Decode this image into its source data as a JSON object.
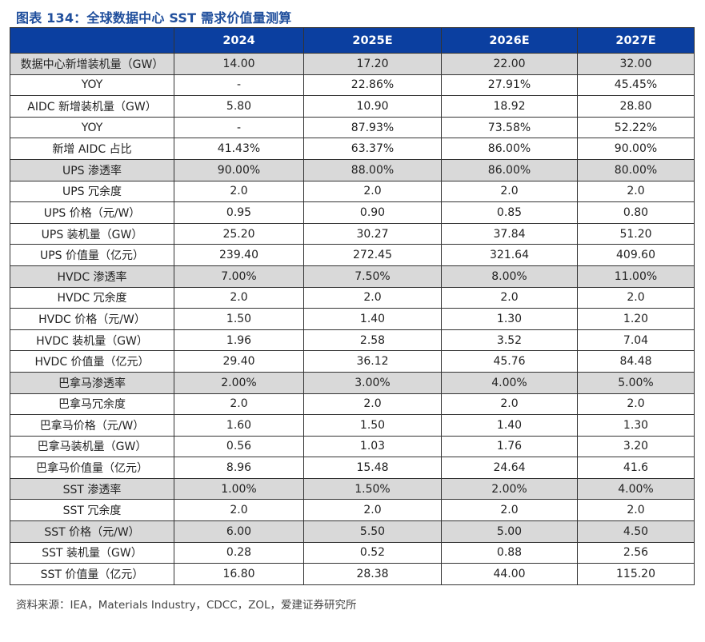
{
  "title": "图表 134：全球数据中心 SST 需求价值量测算",
  "header": [
    "",
    "2024",
    "2025E",
    "2026E",
    "2027E"
  ],
  "rows": [
    {
      "label": "数据中心新增装机量（GW）",
      "values": [
        "14.00",
        "17.20",
        "22.00",
        "32.00"
      ],
      "shaded": true
    },
    {
      "label": "YOY",
      "values": [
        "-",
        "22.86%",
        "27.91%",
        "45.45%"
      ],
      "shaded": false
    },
    {
      "label": "AIDC 新增装机量（GW）",
      "values": [
        "5.80",
        "10.90",
        "18.92",
        "28.80"
      ],
      "shaded": false
    },
    {
      "label": "YOY",
      "values": [
        "-",
        "87.93%",
        "73.58%",
        "52.22%"
      ],
      "shaded": false
    },
    {
      "label": "新增 AIDC 占比",
      "values": [
        "41.43%",
        "63.37%",
        "86.00%",
        "90.00%"
      ],
      "shaded": false
    },
    {
      "label": "UPS 渗透率",
      "values": [
        "90.00%",
        "88.00%",
        "86.00%",
        "80.00%"
      ],
      "shaded": true
    },
    {
      "label": "UPS 冗余度",
      "values": [
        "2.0",
        "2.0",
        "2.0",
        "2.0"
      ],
      "shaded": false
    },
    {
      "label": "UPS 价格（元/W）",
      "values": [
        "0.95",
        "0.90",
        "0.85",
        "0.80"
      ],
      "shaded": false
    },
    {
      "label": "UPS 装机量（GW）",
      "values": [
        "25.20",
        "30.27",
        "37.84",
        "51.20"
      ],
      "shaded": false
    },
    {
      "label": "UPS 价值量（亿元）",
      "values": [
        "239.40",
        "272.45",
        "321.64",
        "409.60"
      ],
      "shaded": false
    },
    {
      "label": "HVDC 渗透率",
      "values": [
        "7.00%",
        "7.50%",
        "8.00%",
        "11.00%"
      ],
      "shaded": true
    },
    {
      "label": "HVDC 冗余度",
      "values": [
        "2.0",
        "2.0",
        "2.0",
        "2.0"
      ],
      "shaded": false
    },
    {
      "label": "HVDC 价格（元/W）",
      "values": [
        "1.50",
        "1.40",
        "1.30",
        "1.20"
      ],
      "shaded": false
    },
    {
      "label": "HVDC 装机量（GW）",
      "values": [
        "1.96",
        "2.58",
        "3.52",
        "7.04"
      ],
      "shaded": false
    },
    {
      "label": "HVDC 价值量（亿元）",
      "values": [
        "29.40",
        "36.12",
        "45.76",
        "84.48"
      ],
      "shaded": false
    },
    {
      "label": "巴拿马渗透率",
      "values": [
        "2.00%",
        "3.00%",
        "4.00%",
        "5.00%"
      ],
      "shaded": true
    },
    {
      "label": "巴拿马冗余度",
      "values": [
        "2.0",
        "2.0",
        "2.0",
        "2.0"
      ],
      "shaded": false
    },
    {
      "label": "巴拿马价格（元/W）",
      "values": [
        "1.60",
        "1.50",
        "1.40",
        "1.30"
      ],
      "shaded": false
    },
    {
      "label": "巴拿马装机量（GW）",
      "values": [
        "0.56",
        "1.03",
        "1.76",
        "3.20"
      ],
      "shaded": false
    },
    {
      "label": "巴拿马价值量（亿元）",
      "values": [
        "8.96",
        "15.48",
        "24.64",
        "41.6"
      ],
      "shaded": false
    },
    {
      "label": "SST 渗透率",
      "values": [
        "1.00%",
        "1.50%",
        "2.00%",
        "4.00%"
      ],
      "shaded": true
    },
    {
      "label": "SST 冗余度",
      "values": [
        "2.0",
        "2.0",
        "2.0",
        "2.0"
      ],
      "shaded": false
    },
    {
      "label": "SST 价格（元/W）",
      "values": [
        "6.00",
        "5.50",
        "5.00",
        "4.50"
      ],
      "shaded": true
    },
    {
      "label": "SST 装机量（GW）",
      "values": [
        "0.28",
        "0.52",
        "0.88",
        "2.56"
      ],
      "shaded": false
    },
    {
      "label": "SST 价值量（亿元）",
      "values": [
        "16.80",
        "28.38",
        "44.00",
        "115.20"
      ],
      "shaded": false
    }
  ],
  "source": "资料来源：IEA，Materials Industry，CDCC，ZOL，爱建证券研究所",
  "colors": {
    "header_bg": "#0b3fa0",
    "title": "#1f4e9c",
    "shaded_row": "#d9d9d9"
  }
}
